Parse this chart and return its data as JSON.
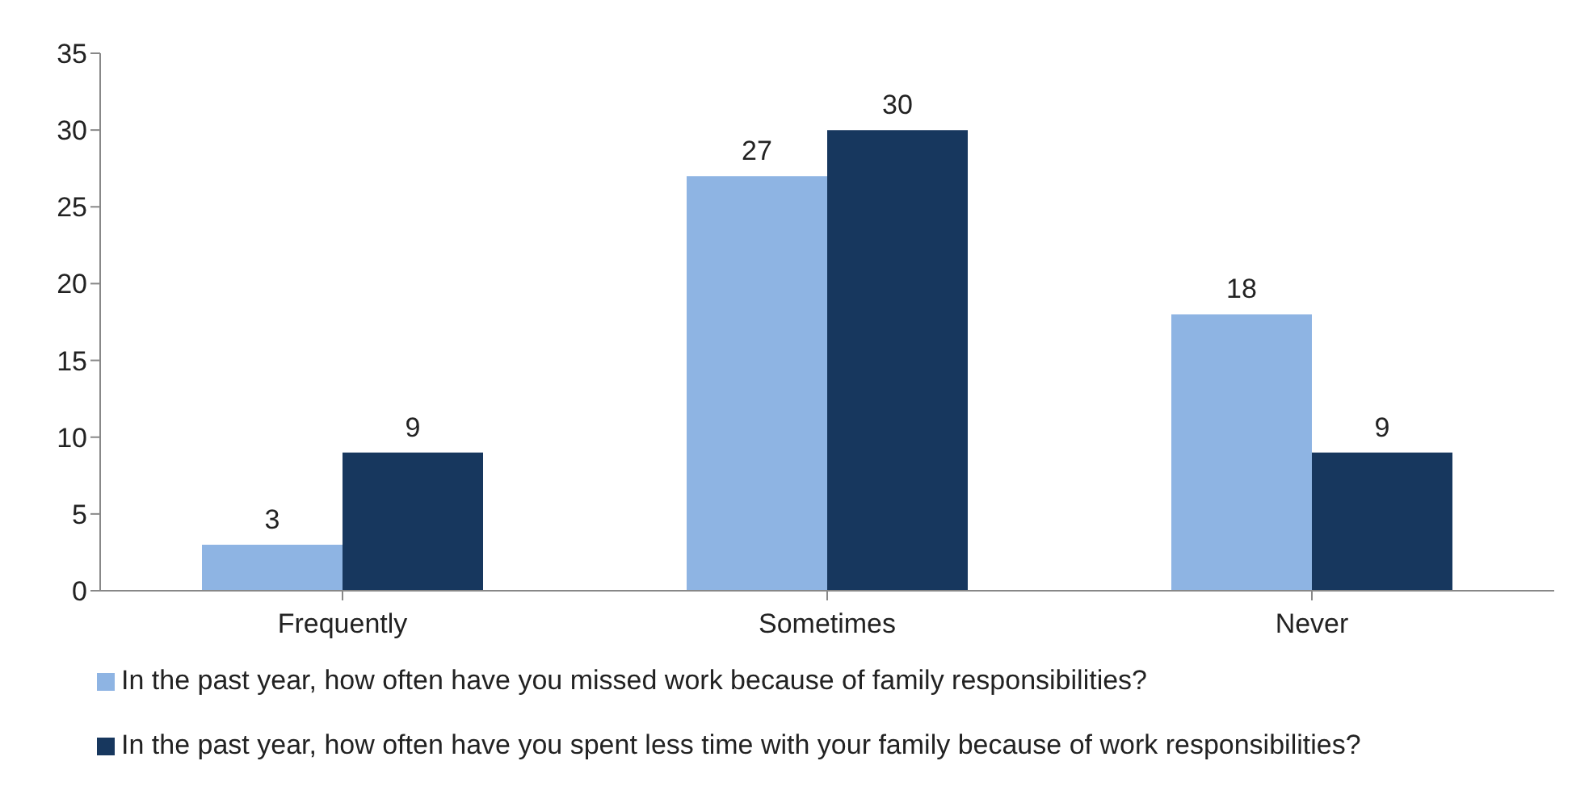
{
  "chart_data": {
    "type": "bar",
    "categories": [
      "Frequently",
      "Sometimes",
      "Never"
    ],
    "series": [
      {
        "name": "In the past year, how often have you missed work because of family responsibilities?",
        "color": "#8eb4e3",
        "values": [
          3,
          27,
          18
        ]
      },
      {
        "name": "In the past year, how often have you spent less time with your family because of work responsibilities?",
        "color": "#17375e",
        "values": [
          9,
          30,
          9
        ]
      }
    ],
    "ylim": [
      0,
      35
    ],
    "yticks": [
      0,
      5,
      10,
      15,
      20,
      25,
      30,
      35
    ],
    "grid": false,
    "legend": "bottom",
    "data_labels": true
  }
}
